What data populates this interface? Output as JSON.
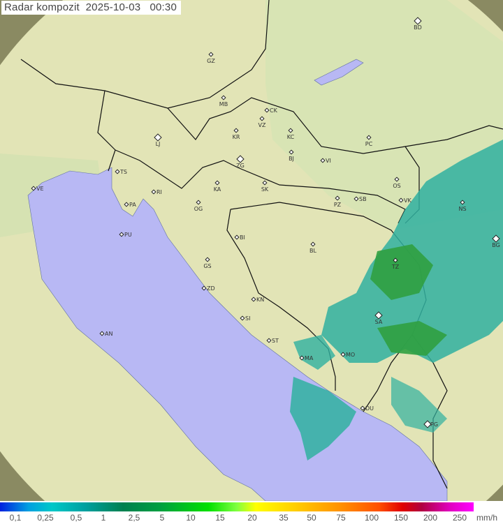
{
  "header": {
    "title": "Radar kompozit",
    "date": "2025-10-03",
    "time": "00:30"
  },
  "legend": {
    "unit": "mm/h",
    "ticks": [
      "0,1",
      "0,25",
      "0,5",
      "1",
      "2,5",
      "5",
      "10",
      "15",
      "20",
      "35",
      "50",
      "75",
      "100",
      "150",
      "200",
      "250"
    ]
  },
  "colors": {
    "sea": "#b8b8f4",
    "land_covered": "#e4e8b8",
    "land_outside": "#8c8c60",
    "rain_light": "#20b0a0",
    "rain_moderate": "#30a040"
  },
  "cities": [
    "GZ",
    "BD",
    "MB",
    "CK",
    "VZ",
    "KR",
    "KC",
    "LJ",
    "BJ",
    "PC",
    "VI",
    "ZG",
    "TS",
    "VE",
    "OS",
    "KA",
    "SK",
    "RI",
    "PA",
    "OG",
    "PZ",
    "SB",
    "VK",
    "NS",
    "PU",
    "BI",
    "BL",
    "BG",
    "TZ",
    "GS",
    "ZD",
    "KN",
    "SA",
    "AN",
    "SI",
    "ST",
    "MO",
    "MA",
    "DU",
    "PG"
  ],
  "capitals": [
    "LJ",
    "ZG",
    "BG",
    "SA",
    "PG",
    "BD"
  ]
}
